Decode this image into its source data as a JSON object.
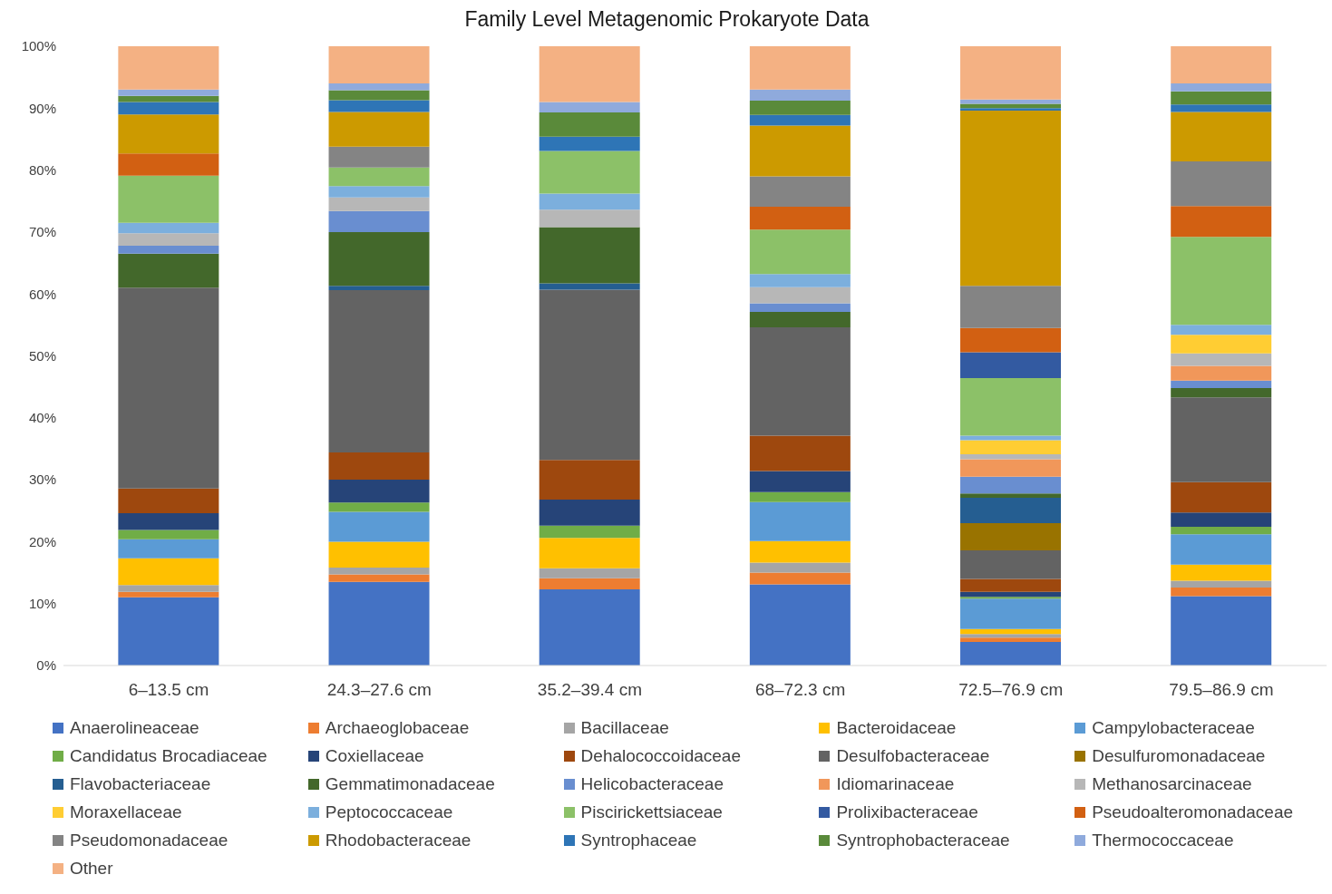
{
  "chart_data": {
    "type": "bar",
    "title": "Family Level Metagenomic Prokaryote Data",
    "stacked": true,
    "grid": false,
    "legend": "bottom",
    "categories": [
      "6–13.5 cm",
      "24.3–27.6 cm",
      "35.2–39.4 cm",
      "68–72.3 cm",
      "72.5–76.9 cm",
      "79.5–86.9 cm"
    ],
    "ylim": [
      0,
      100
    ],
    "yticks": [
      {
        "value": 0,
        "label": "0%"
      },
      {
        "value": 10,
        "label": "10%"
      },
      {
        "value": 20,
        "label": "20%"
      },
      {
        "value": 30,
        "label": "30%"
      },
      {
        "value": 40,
        "label": "40%"
      },
      {
        "value": 50,
        "label": "50%"
      },
      {
        "value": 60,
        "label": "60%"
      },
      {
        "value": 70,
        "label": "70%"
      },
      {
        "value": 80,
        "label": "80%"
      },
      {
        "value": 90,
        "label": "90%"
      },
      {
        "value": 100,
        "label": "100%"
      }
    ],
    "series": [
      {
        "name": "Anaerolineaceae",
        "color": "#4472c4",
        "values": [
          11.0,
          13.5,
          12.3,
          13.1,
          3.8,
          11.2
        ]
      },
      {
        "name": "Archaeoglobaceae",
        "color": "#ed7d31",
        "values": [
          0.9,
          1.2,
          1.8,
          1.9,
          0.7,
          1.4
        ]
      },
      {
        "name": "Bacillaceae",
        "color": "#a5a5a5",
        "values": [
          1.1,
          1.1,
          1.6,
          1.6,
          0.6,
          1.1
        ]
      },
      {
        "name": "Bacteroidaceae",
        "color": "#ffc000",
        "values": [
          4.3,
          4.2,
          4.9,
          3.5,
          0.8,
          2.6
        ]
      },
      {
        "name": "Campylobacteraceae",
        "color": "#5b9bd5",
        "values": [
          3.1,
          4.8,
          0,
          6.3,
          4.9,
          4.9
        ]
      },
      {
        "name": "Candidatus Brocadiaceae",
        "color": "#70ad47",
        "values": [
          1.5,
          1.5,
          2.0,
          1.6,
          0.3,
          1.2
        ]
      },
      {
        "name": "Coxiellaceae",
        "color": "#264478",
        "values": [
          2.7,
          3.7,
          4.2,
          3.4,
          0.8,
          2.3
        ]
      },
      {
        "name": "Dehalococcoidaceae",
        "color": "#9e480e",
        "values": [
          4.0,
          4.4,
          6.4,
          5.7,
          2.1,
          4.9
        ]
      },
      {
        "name": "Desulfobacteraceae",
        "color": "#636363",
        "values": [
          32.4,
          26.2,
          27.5,
          17.5,
          4.6,
          13.7
        ]
      },
      {
        "name": "Desulfuromonadaceae",
        "color": "#997300",
        "values": [
          0,
          0,
          0,
          0,
          4.4,
          0
        ]
      },
      {
        "name": "Flavobacteriaceae",
        "color": "#255e91",
        "values": [
          0,
          0.7,
          1.0,
          0,
          4.1,
          0
        ]
      },
      {
        "name": "Gemmatimonadaceae",
        "color": "#43682b",
        "values": [
          5.5,
          8.7,
          9.1,
          2.5,
          0.7,
          1.5
        ]
      },
      {
        "name": "Helicobacteraceae",
        "color": "#698ed0",
        "values": [
          1.3,
          3.4,
          0,
          1.4,
          2.7,
          1.2
        ]
      },
      {
        "name": "Idiomarinaceae",
        "color": "#f1975a",
        "values": [
          0,
          0,
          0,
          0,
          2.8,
          2.4
        ]
      },
      {
        "name": "Methanosarcinaceae",
        "color": "#b7b7b7",
        "values": [
          2.0,
          2.2,
          2.8,
          2.6,
          0.8,
          2.0
        ]
      },
      {
        "name": "Moraxellaceae",
        "color": "#ffcd33",
        "values": [
          0,
          0,
          0,
          0,
          2.3,
          3.0
        ]
      },
      {
        "name": "Peptococcaceae",
        "color": "#7cafdd",
        "values": [
          1.7,
          1.8,
          2.6,
          2.1,
          0.7,
          1.6
        ]
      },
      {
        "name": "Piscirickettsiaceae",
        "color": "#8cc168",
        "values": [
          7.6,
          3.0,
          6.9,
          7.2,
          9.3,
          14.2
        ]
      },
      {
        "name": "Prolixibacteraceae",
        "color": "#335aa1",
        "values": [
          0,
          0,
          0,
          0,
          4.2,
          0
        ]
      },
      {
        "name": "Pseudoalteromonadaceae",
        "color": "#d26012",
        "values": [
          3.6,
          0,
          0,
          3.7,
          3.9,
          5.0
        ]
      },
      {
        "name": "Pseudomonadaceae",
        "color": "#848484",
        "values": [
          0,
          3.4,
          0,
          4.9,
          6.8,
          7.2
        ]
      },
      {
        "name": "Rhodobacteraceae",
        "color": "#cc9a00",
        "values": [
          6.3,
          5.6,
          0,
          8.2,
          28.3,
          8.0
        ]
      },
      {
        "name": "Syntrophaceae",
        "color": "#2e75b6",
        "values": [
          2.0,
          1.9,
          2.3,
          1.7,
          0.4,
          1.2
        ]
      },
      {
        "name": "Syntrophobacteraceae",
        "color": "#5a8a3a",
        "values": [
          1.0,
          1.6,
          3.9,
          2.3,
          0.7,
          2.1
        ]
      },
      {
        "name": "Thermococcaceae",
        "color": "#8faadc",
        "values": [
          1.0,
          1.1,
          1.7,
          1.8,
          0.7,
          1.3
        ]
      },
      {
        "name": "Other",
        "color": "#f4b183",
        "values": [
          7.0,
          6.0,
          9.0,
          7.0,
          8.6,
          6.0
        ]
      }
    ]
  }
}
